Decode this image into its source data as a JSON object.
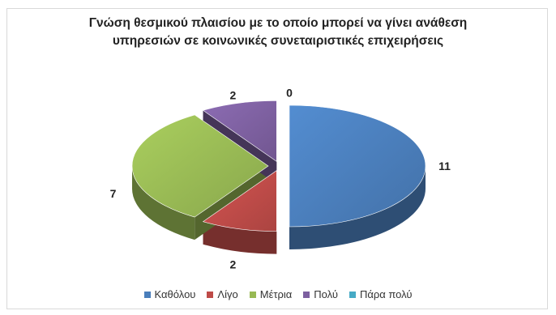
{
  "chart_data": {
    "type": "pie",
    "title_lines": [
      "Γνώση θεσμικού πλαισίου με το οποίο μπορεί να γίνει ανάθεση",
      "υπηρεσιών σε κοινωνικές συνεταιριστικές επιχειρήσεις"
    ],
    "categories": [
      "Καθόλου",
      "Λίγο",
      "Μέτρια",
      "Πολύ",
      "Πάρα πολύ"
    ],
    "values": [
      11,
      2,
      7,
      2,
      0
    ],
    "colors": [
      "#4a7ebb",
      "#be4b48",
      "#98b954",
      "#7d60a0",
      "#46aac5"
    ],
    "style": "3d-exploded",
    "legend_position": "bottom"
  }
}
